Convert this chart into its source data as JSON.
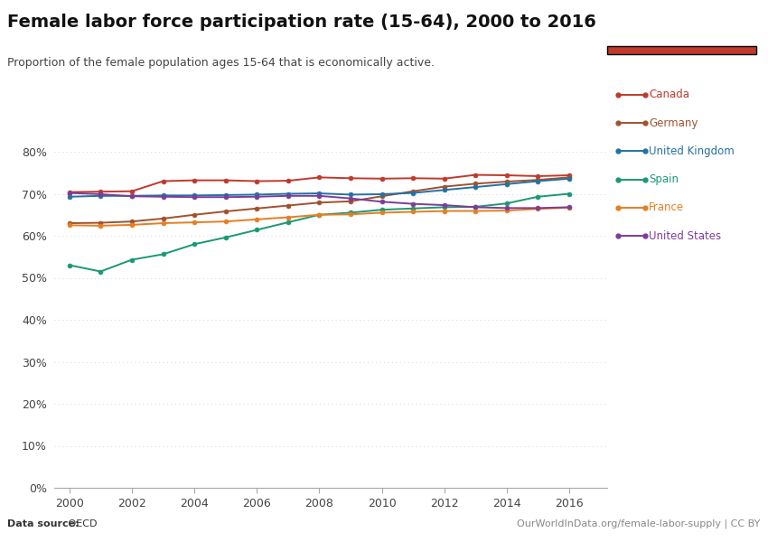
{
  "title": "Female labor force participation rate (15-64), 2000 to 2016",
  "subtitle": "Proportion of the female population ages 15-64 that is economically active.",
  "datasource_bold": "Data source:",
  "datasource_normal": " OECD",
  "url": "OurWorldInData.org/female-labor-supply | CC BY",
  "years": [
    2000,
    2001,
    2002,
    2003,
    2004,
    2005,
    2006,
    2007,
    2008,
    2009,
    2010,
    2011,
    2012,
    2013,
    2014,
    2015,
    2016
  ],
  "series": {
    "Canada": [
      0.704,
      0.705,
      0.706,
      0.73,
      0.732,
      0.732,
      0.73,
      0.731,
      0.739,
      0.737,
      0.736,
      0.737,
      0.736,
      0.745,
      0.744,
      0.742,
      0.744
    ],
    "Germany": [
      0.63,
      0.631,
      0.634,
      0.641,
      0.65,
      0.658,
      0.665,
      0.672,
      0.679,
      0.682,
      0.694,
      0.706,
      0.717,
      0.724,
      0.729,
      0.733,
      0.739
    ],
    "United Kingdom": [
      0.693,
      0.695,
      0.695,
      0.696,
      0.696,
      0.697,
      0.698,
      0.7,
      0.701,
      0.698,
      0.699,
      0.702,
      0.709,
      0.716,
      0.723,
      0.73,
      0.736
    ],
    "Spain": [
      0.53,
      0.515,
      0.543,
      0.556,
      0.58,
      0.596,
      0.614,
      0.632,
      0.65,
      0.655,
      0.662,
      0.665,
      0.668,
      0.669,
      0.677,
      0.693,
      0.7
    ],
    "France": [
      0.625,
      0.624,
      0.626,
      0.63,
      0.632,
      0.634,
      0.639,
      0.644,
      0.65,
      0.651,
      0.655,
      0.657,
      0.659,
      0.659,
      0.66,
      0.664,
      0.667
    ],
    "United States": [
      0.702,
      0.699,
      0.694,
      0.693,
      0.692,
      0.692,
      0.693,
      0.695,
      0.695,
      0.689,
      0.681,
      0.676,
      0.673,
      0.668,
      0.666,
      0.666,
      0.668
    ]
  },
  "line_colors": {
    "Canada": "#C0392B",
    "Germany": "#A0522D",
    "United Kingdom": "#2471A3",
    "Spain": "#1A9874",
    "France": "#E67E22",
    "United States": "#7D3C98"
  },
  "legend_order": [
    "Canada",
    "Germany",
    "United Kingdom",
    "Spain",
    "France",
    "United States"
  ],
  "ylim": [
    0.0,
    0.8
  ],
  "yticks": [
    0.0,
    0.1,
    0.2,
    0.3,
    0.4,
    0.5,
    0.6,
    0.7,
    0.8
  ],
  "xlim": [
    1999.5,
    2017.2
  ],
  "xticks": [
    2000,
    2002,
    2004,
    2006,
    2008,
    2010,
    2012,
    2014,
    2016
  ],
  "background_color": "#FFFFFF",
  "grid_color": "#DDDDDD",
  "logo_bg_color": "#1a3a5c",
  "logo_red_color": "#C0392B"
}
